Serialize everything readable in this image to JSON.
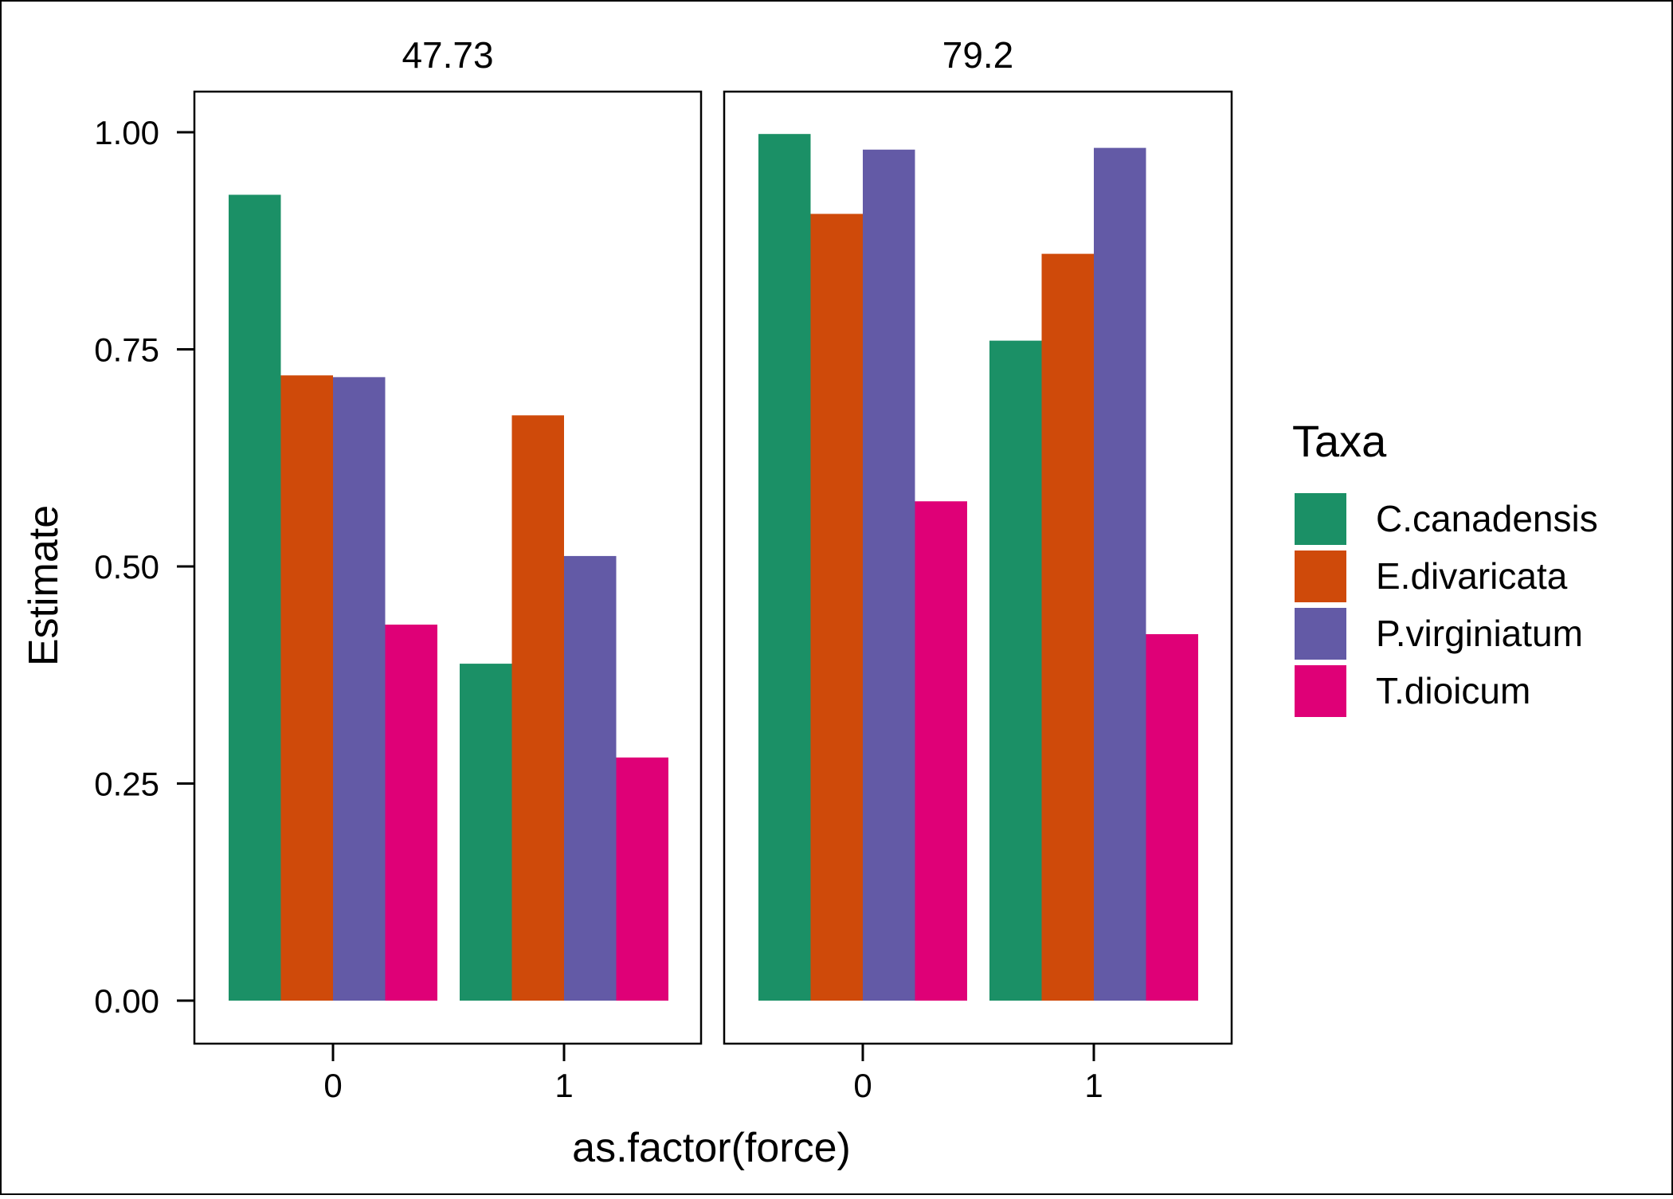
{
  "chart_data": {
    "type": "bar",
    "ylabel": "Estimate",
    "xlabel": "as.factor(force)",
    "ylim": [
      0,
      1.05
    ],
    "yticks": [
      "0.00",
      "0.25",
      "0.50",
      "0.75",
      "1.00"
    ],
    "ytick_values": [
      0,
      0.25,
      0.5,
      0.75,
      1.0
    ],
    "categories": [
      "0",
      "1"
    ],
    "grid": false,
    "legend": {
      "title": "Taxa",
      "placement": "right",
      "entries": [
        "C.canadensis",
        "E.divaricata",
        "P.virginiatum",
        "T.dioicum"
      ]
    },
    "colors": {
      "C.canadensis": "#1b9066",
      "E.divaricata": "#cf4a0a",
      "P.virginiatum": "#635aa6",
      "T.dioicum": "#df0077"
    },
    "panels": [
      {
        "title": "47.73",
        "series": [
          {
            "name": "C.canadensis",
            "values": [
              0.928,
              0.388
            ]
          },
          {
            "name": "E.divaricata",
            "values": [
              0.72,
              0.674
            ]
          },
          {
            "name": "P.virginiatum",
            "values": [
              0.718,
              0.512
            ]
          },
          {
            "name": "T.dioicum",
            "values": [
              0.433,
              0.28
            ]
          }
        ]
      },
      {
        "title": "79.2",
        "series": [
          {
            "name": "C.canadensis",
            "values": [
              0.998,
              0.76
            ]
          },
          {
            "name": "E.divaricata",
            "values": [
              0.906,
              0.86
            ]
          },
          {
            "name": "P.virginiatum",
            "values": [
              0.98,
              0.982
            ]
          },
          {
            "name": "T.dioicum",
            "values": [
              0.575,
              0.422
            ]
          }
        ]
      }
    ]
  }
}
